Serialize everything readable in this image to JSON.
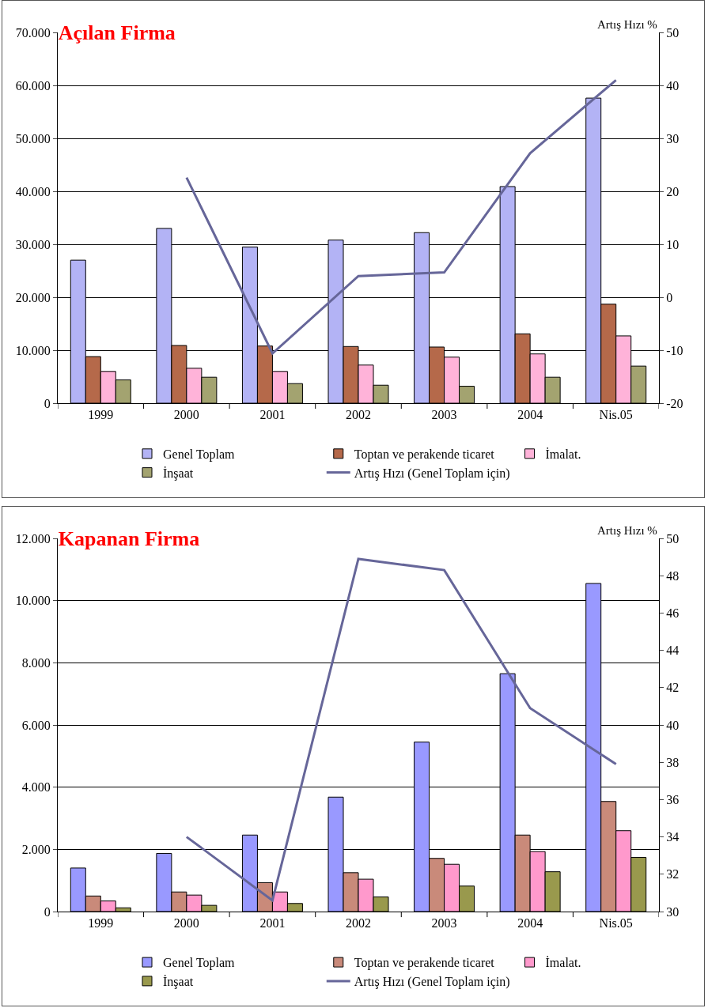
{
  "chart_data": [
    {
      "type": "bar",
      "title": "Açılan Firma",
      "y2label": "Artış Hızı %",
      "categories": [
        "1999",
        "2000",
        "2001",
        "2002",
        "2003",
        "2004",
        "Nis.05"
      ],
      "series": [
        {
          "name": "Genel Toplam",
          "color": "#b3b3f5",
          "values": [
            27000,
            33000,
            29500,
            30800,
            32200,
            40900,
            57600
          ]
        },
        {
          "name": "Toptan ve perakende ticaret",
          "color": "#b5694a",
          "values": [
            8800,
            10900,
            10800,
            10700,
            10600,
            13100,
            18700
          ]
        },
        {
          "name": "İmalat.",
          "color": "#ffb3d9",
          "values": [
            6000,
            6600,
            6000,
            7200,
            8700,
            9300,
            12700
          ]
        },
        {
          "name": "İnşaat",
          "color": "#a3a370",
          "values": [
            4400,
            4900,
            3700,
            3400,
            3200,
            4900,
            7000
          ]
        },
        {
          "name": "Artış Hızı (Genel Toplam için)",
          "type": "line",
          "axis": "y2",
          "color": "#666699",
          "values": [
            null,
            22.6,
            -10.6,
            4.0,
            4.7,
            27.2,
            41.0
          ]
        }
      ],
      "ylim": [
        0,
        70000
      ],
      "yticks": [
        {
          "value": 0,
          "label": "0"
        },
        {
          "value": 10000,
          "label": "10.000"
        },
        {
          "value": 20000,
          "label": "20.000"
        },
        {
          "value": 30000,
          "label": "30.000"
        },
        {
          "value": 40000,
          "label": "40.000"
        },
        {
          "value": 50000,
          "label": "50.000"
        },
        {
          "value": 60000,
          "label": "60.000"
        },
        {
          "value": 70000,
          "label": "70.000"
        }
      ],
      "y2lim": [
        -20,
        50
      ],
      "y2ticks": [
        -20,
        -10,
        0,
        10,
        20,
        30,
        40,
        50
      ],
      "grid": "y",
      "legend": "bottom",
      "marker": "none",
      "line_style": "solid"
    },
    {
      "type": "bar",
      "title": "Kapanan Firma",
      "y2label": "Artış Hızı %",
      "categories": [
        "1999",
        "2000",
        "2001",
        "2002",
        "2003",
        "2004",
        "Nis.05"
      ],
      "series": [
        {
          "name": "Genel Toplam",
          "color": "#9999ff",
          "values": [
            1400,
            1870,
            2460,
            3680,
            5450,
            7650,
            10550
          ]
        },
        {
          "name": "Toptan ve perakende ticaret",
          "color": "#c98a7a",
          "values": [
            500,
            630,
            930,
            1250,
            1710,
            2460,
            3540
          ]
        },
        {
          "name": "İmalat.",
          "color": "#ff99cc",
          "values": [
            340,
            530,
            630,
            1040,
            1520,
            1930,
            2600
          ]
        },
        {
          "name": "İnşaat",
          "color": "#99994d",
          "values": [
            120,
            200,
            260,
            470,
            820,
            1280,
            1740
          ]
        },
        {
          "name": "Artış Hızı (Genel Toplam için)",
          "type": "line",
          "axis": "y2",
          "color": "#666699",
          "values": [
            null,
            34.0,
            30.6,
            48.9,
            48.3,
            40.9,
            37.9
          ]
        }
      ],
      "ylim": [
        0,
        12000
      ],
      "yticks": [
        {
          "value": 0,
          "label": "0"
        },
        {
          "value": 2000,
          "label": "2.000"
        },
        {
          "value": 4000,
          "label": "4.000"
        },
        {
          "value": 6000,
          "label": "6.000"
        },
        {
          "value": 8000,
          "label": "8.000"
        },
        {
          "value": 10000,
          "label": "10.000"
        },
        {
          "value": 12000,
          "label": "12.000"
        }
      ],
      "y2lim": [
        30,
        50
      ],
      "y2ticks": [
        30,
        32,
        34,
        36,
        38,
        40,
        42,
        44,
        46,
        48,
        50
      ],
      "grid": "y",
      "legend": "bottom",
      "marker": "none",
      "line_style": "solid"
    }
  ]
}
